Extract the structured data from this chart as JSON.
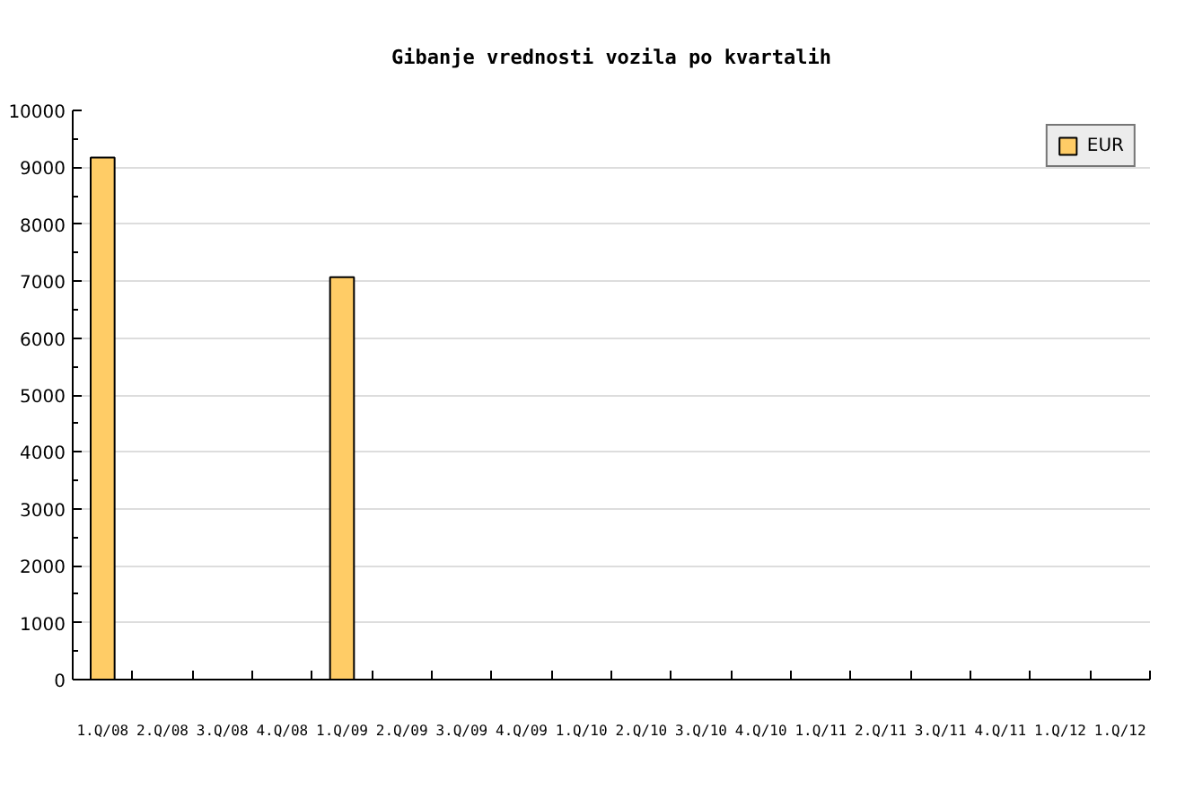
{
  "chart_data": {
    "type": "bar",
    "title": "Gibanje vrednosti vozila po kvartalih",
    "categories": [
      "1.Q/08",
      "2.Q/08",
      "3.Q/08",
      "4.Q/08",
      "1.Q/09",
      "2.Q/09",
      "3.Q/09",
      "4.Q/09",
      "1.Q/10",
      "2.Q/10",
      "3.Q/10",
      "4.Q/10",
      "1.Q/11",
      "2.Q/11",
      "3.Q/11",
      "4.Q/11",
      "1.Q/12",
      "1.Q/12"
    ],
    "series": [
      {
        "name": "EUR",
        "color": "#ffcc66",
        "values": [
          9170,
          null,
          null,
          null,
          7070,
          null,
          null,
          null,
          null,
          null,
          null,
          null,
          null,
          null,
          null,
          null,
          null,
          null
        ]
      }
    ],
    "ylim": [
      0,
      10000
    ],
    "yticks": [
      0,
      1000,
      2000,
      3000,
      4000,
      5000,
      6000,
      7000,
      8000,
      9000,
      10000
    ],
    "grid": "y",
    "legend": "top right"
  }
}
